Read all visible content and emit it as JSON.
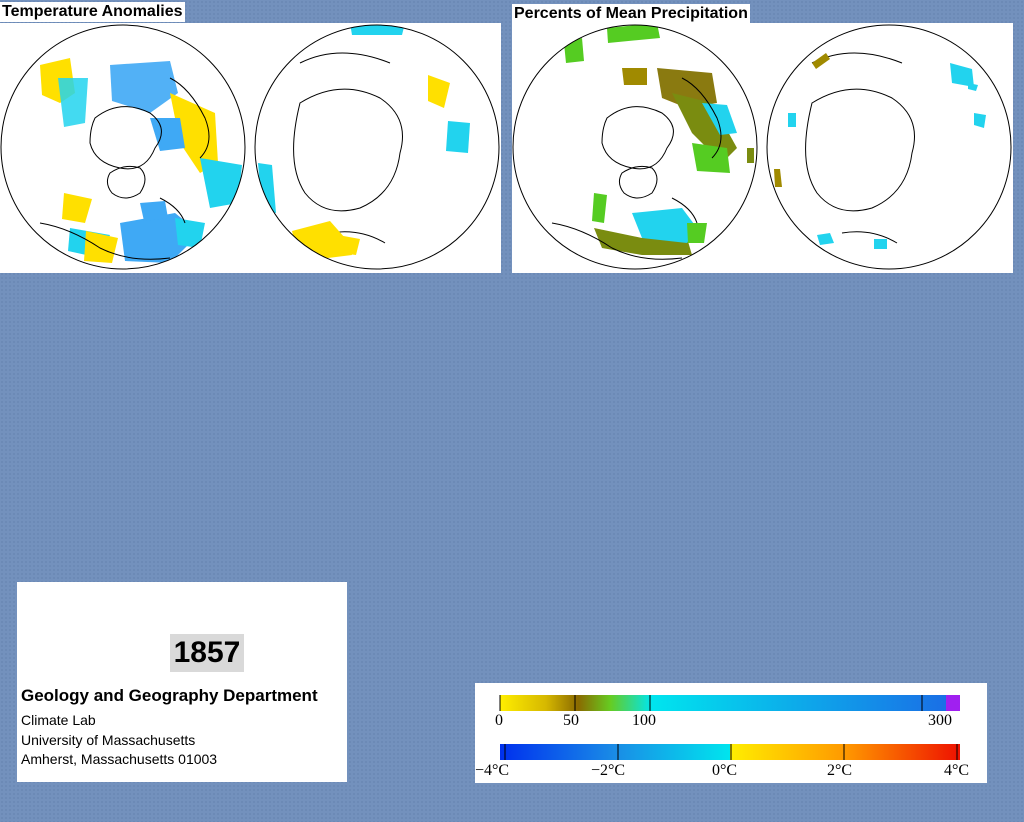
{
  "temperature_panel": {
    "title": "Temperature Anomalies"
  },
  "precip_panel": {
    "title": "Percents of Mean Precipitation"
  },
  "info_box": {
    "year": "1857",
    "department": "Geology and Geography Department",
    "lines": [
      "Climate Lab",
      "University of Massachusetts",
      "Amherst, Massachusetts 01003"
    ]
  },
  "legend": {
    "precip": {
      "min": 0,
      "max": 300,
      "ticks": [
        {
          "value": 0,
          "label": "0"
        },
        {
          "value": 50,
          "label": "50"
        },
        {
          "value": 100,
          "label": "100"
        },
        {
          "value": 300,
          "label": "300"
        }
      ],
      "colors": [
        "#ffee00",
        "#c8a800",
        "#8a6a00",
        "#66cc22",
        "#00e5ee",
        "#1a7fe6",
        "#a020f0"
      ]
    },
    "temp": {
      "min": -4,
      "max": 4,
      "ticks": [
        {
          "value": -4,
          "label": "−4°C"
        },
        {
          "value": -2,
          "label": "−2°C"
        },
        {
          "value": 0,
          "label": "0°C"
        },
        {
          "value": 2,
          "label": "2°C"
        },
        {
          "value": 4,
          "label": "4°C"
        }
      ],
      "colors": [
        "#0040ee",
        "#1a8ce6",
        "#00e5ee",
        "#ffee00",
        "#ff9900",
        "#ee1100"
      ]
    }
  },
  "anomaly_colors": {
    "cold": "#3fa9f5",
    "cool": "#22d3ee",
    "warm": "#ffe000",
    "dry": "#a08a00",
    "wet": "#55cc22"
  }
}
